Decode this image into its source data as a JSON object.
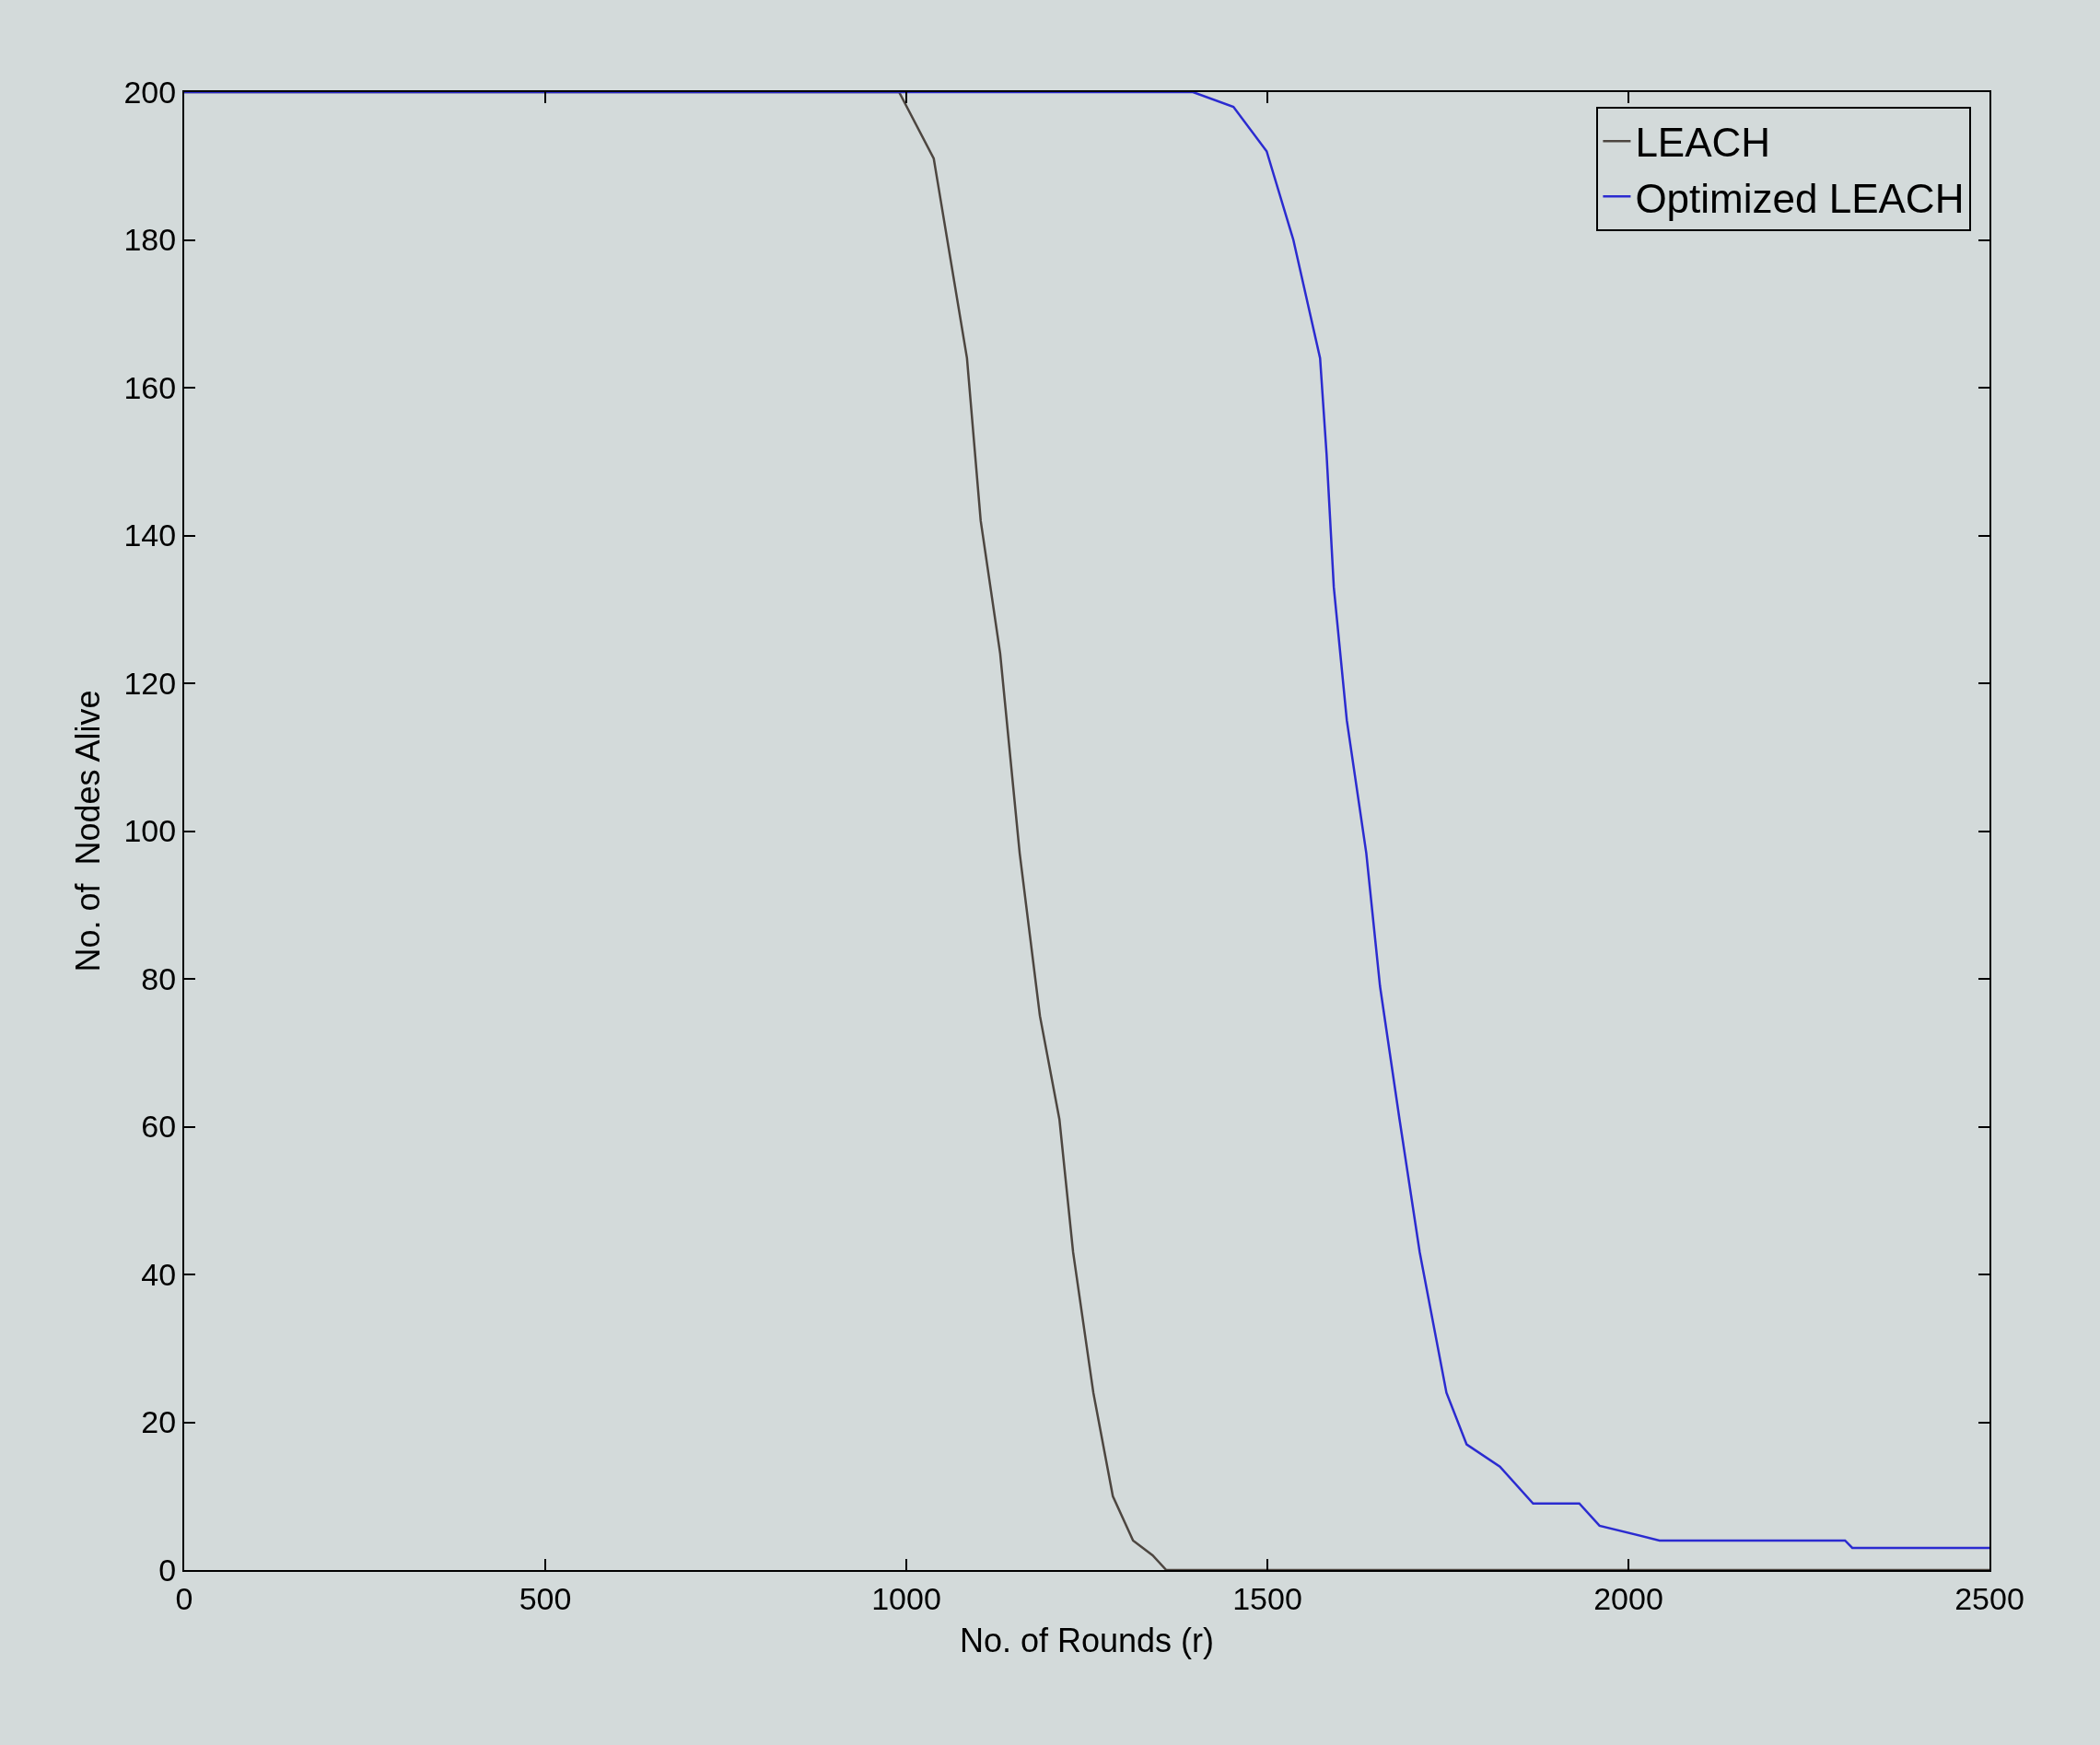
{
  "chart_data": {
    "type": "line",
    "xlabel": "No. of Rounds (r)",
    "ylabel": "No. of  Nodes Alive",
    "xlim": [
      0,
      2500
    ],
    "xticks": [
      0,
      500,
      1000,
      1500,
      2000,
      2500
    ],
    "ylim": [
      0,
      200
    ],
    "yticks": [
      0,
      20,
      40,
      60,
      80,
      100,
      120,
      140,
      160,
      180,
      200
    ],
    "grid": false,
    "legend": "top right",
    "marker": "none",
    "line_style": "solid",
    "series": [
      {
        "name": "LEACH",
        "color": "#4d4640",
        "x": [
          0,
          990,
          1038,
          1084,
          1103,
          1130,
          1157,
          1185,
          1212,
          1231,
          1259,
          1286,
          1314,
          1341,
          1360,
          2500
        ],
        "values": [
          200,
          200,
          191,
          164,
          142,
          124,
          97,
          75,
          61,
          43,
          24,
          10,
          4,
          2,
          0,
          0
        ]
      },
      {
        "name": "Optimized LEACH",
        "color": "#2b2bd0",
        "x": [
          0,
          1397,
          1453,
          1499,
          1536,
          1573,
          1582,
          1592,
          1610,
          1637,
          1656,
          1683,
          1711,
          1748,
          1776,
          1822,
          1868,
          1932,
          1960,
          2043,
          2300,
          2310,
          2500
        ],
        "values": [
          200,
          200,
          198,
          192,
          180,
          164,
          151,
          133,
          115,
          97,
          79,
          61,
          43,
          24,
          17,
          14,
          9,
          9,
          6,
          4,
          4,
          3,
          3
        ]
      }
    ]
  }
}
